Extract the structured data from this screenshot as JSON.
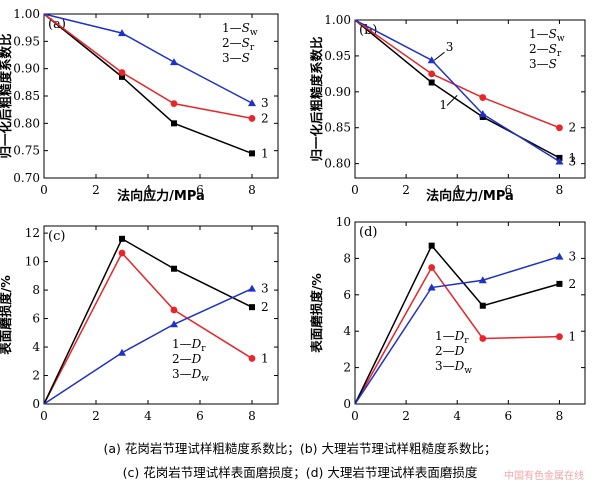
{
  "chart_data": [
    {
      "type": "line",
      "panel_label": "(a)",
      "xlabel": "法向应力/MPa",
      "ylabel": "归一化后粗糙度系数比",
      "xlim": [
        0,
        9
      ],
      "ylim": [
        0.7,
        1.0
      ],
      "xticks": [
        0,
        2,
        4,
        6,
        8
      ],
      "yticks": [
        0.7,
        0.75,
        0.8,
        0.85,
        0.9,
        0.95,
        1.0
      ],
      "ytick_decimals": 2,
      "legend_placement": "top-right",
      "legend_lines": [
        "1—S_w",
        "2—S_r",
        "3—S"
      ],
      "x": [
        0,
        3,
        5,
        8
      ],
      "series": [
        {
          "label": "1",
          "color": "#000000",
          "marker": "square",
          "values": [
            1.0,
            0.885,
            0.8,
            0.745
          ]
        },
        {
          "label": "2",
          "color": "#e8262a",
          "marker": "circle",
          "values": [
            1.0,
            0.893,
            0.836,
            0.809
          ]
        },
        {
          "label": "3",
          "color": "#1f31c9",
          "marker": "triangle",
          "values": [
            1.0,
            0.965,
            0.912,
            0.837
          ]
        }
      ]
    },
    {
      "type": "line",
      "panel_label": "(b)",
      "xlabel": "法向应力/MPa",
      "ylabel": "归一化后粗糙度系数比",
      "xlim": [
        0,
        9
      ],
      "ylim": [
        0.78,
        1.0
      ],
      "xticks": [
        0,
        2,
        4,
        6,
        8
      ],
      "yticks": [
        0.8,
        0.85,
        0.9,
        0.95,
        1.0
      ],
      "ytick_decimals": 2,
      "legend_placement": "top-right",
      "legend_lines": [
        "1—S_w",
        "2—S_r",
        "3—S"
      ],
      "x": [
        0,
        3,
        5,
        8
      ],
      "series": [
        {
          "label": "1",
          "color": "#000000",
          "marker": "square",
          "values": [
            1.0,
            0.913,
            0.865,
            0.808
          ]
        },
        {
          "label": "2",
          "color": "#e8262a",
          "marker": "circle",
          "values": [
            1.0,
            0.925,
            0.892,
            0.85
          ]
        },
        {
          "label": "3",
          "color": "#1f31c9",
          "marker": "triangle",
          "values": [
            1.0,
            0.944,
            0.869,
            0.803
          ]
        }
      ]
    },
    {
      "type": "line",
      "panel_label": "(c)",
      "xlabel": "",
      "ylabel": "表面磨损度/%",
      "xlim": [
        0,
        9
      ],
      "ylim": [
        0,
        12.5
      ],
      "xticks": [
        0,
        2,
        4,
        6,
        8
      ],
      "yticks": [
        0,
        2,
        4,
        6,
        8,
        10,
        12
      ],
      "ytick_decimals": 0,
      "legend_placement": "center-right",
      "legend_lines": [
        "1—D_r",
        "2—D",
        "3—D_w"
      ],
      "x": [
        0,
        3,
        5,
        8
      ],
      "series": [
        {
          "label": "1",
          "color": "#e8262a",
          "marker": "circle",
          "values": [
            0,
            10.6,
            6.6,
            3.2
          ]
        },
        {
          "label": "2",
          "color": "#000000",
          "marker": "square",
          "values": [
            0,
            11.6,
            9.5,
            6.8
          ]
        },
        {
          "label": "3",
          "color": "#1f31c9",
          "marker": "triangle",
          "values": [
            0,
            3.6,
            5.6,
            8.1
          ]
        }
      ]
    },
    {
      "type": "line",
      "panel_label": "(d)",
      "xlabel": "",
      "ylabel": "表面磨损度/%",
      "xlim": [
        0,
        9
      ],
      "ylim": [
        0,
        10
      ],
      "xticks": [
        0,
        2,
        4,
        6,
        8
      ],
      "yticks": [
        0,
        2,
        4,
        6,
        8,
        10
      ],
      "ytick_decimals": 0,
      "legend_placement": "bottom-right",
      "legend_lines": [
        "1—D_r",
        "2—D",
        "3—D_w"
      ],
      "x": [
        0,
        3,
        5,
        8
      ],
      "series": [
        {
          "label": "1",
          "color": "#e8262a",
          "marker": "circle",
          "values": [
            0,
            7.5,
            3.6,
            3.7
          ]
        },
        {
          "label": "2",
          "color": "#000000",
          "marker": "square",
          "values": [
            0,
            8.7,
            5.4,
            6.6
          ]
        },
        {
          "label": "3",
          "color": "#1f31c9",
          "marker": "triangle",
          "values": [
            0,
            6.4,
            6.8,
            8.1
          ]
        }
      ]
    }
  ],
  "caption": {
    "line1": "(a)  花岗岩节理试样粗糙度系数比；(b)  大理岩节理试样粗糙度系数比；",
    "line2": "(c)  花岗岩节理试样表面磨损度；(d)  大理岩节理试样表面磨损度"
  },
  "watermark": "中国有色金属在线"
}
